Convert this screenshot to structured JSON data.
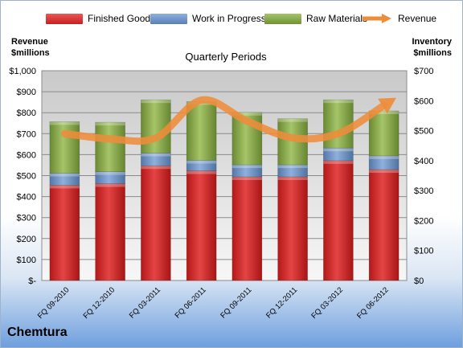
{
  "company": "Chemtura",
  "plot_title": "Quarterly Periods",
  "left_axis_title": [
    "Revenue",
    "$millions"
  ],
  "right_axis_title": [
    "Inventory",
    "$millions"
  ],
  "colors": {
    "finished_goods": "#d62b2b",
    "work_in_progress": "#6f94c9",
    "raw_materials": "#8aad4b",
    "revenue": "#ee8c3a"
  },
  "legend": [
    {
      "label": "Finished Goods",
      "color": "#d62b2b",
      "kind": "box"
    },
    {
      "label": "Work in Progress",
      "color": "#6f94c9",
      "kind": "box"
    },
    {
      "label": "Raw Materials",
      "color": "#8aad4b",
      "kind": "box"
    },
    {
      "label": "Revenue",
      "color": "#ee8c3a",
      "kind": "arrow"
    }
  ],
  "chart_data": {
    "type": "bar",
    "stacked": true,
    "categories": [
      "FQ 09-2010",
      "FQ 12-2010",
      "FQ 03-2011",
      "FQ 06-2011",
      "FQ 09-2011",
      "FQ 12-2011",
      "FQ 03-2012",
      "FQ 06-2012"
    ],
    "series": [
      {
        "name": "Finished Goods",
        "axis": "right",
        "values": [
          318,
          323,
          383,
          366,
          346,
          346,
          400,
          370
        ]
      },
      {
        "name": "Work in Progress",
        "axis": "right",
        "values": [
          40,
          40,
          42,
          35,
          40,
          40,
          42,
          46
        ]
      },
      {
        "name": "Raw Materials",
        "axis": "right",
        "values": [
          172,
          165,
          178,
          196,
          175,
          154,
          161,
          150
        ]
      },
      {
        "name": "Revenue",
        "axis": "left",
        "type": "line",
        "values": [
          700,
          675,
          680,
          860,
          760,
          680,
          700,
          835
        ]
      }
    ],
    "left_axis": {
      "label": "Revenue $millions",
      "ylim": [
        0,
        1000
      ],
      "ticks": [
        "$-",
        "$100",
        "$200",
        "$300",
        "$400",
        "$500",
        "$600",
        "$700",
        "$800",
        "$900",
        "$1,000"
      ]
    },
    "right_axis": {
      "label": "Inventory $millions",
      "ylim": [
        0,
        700
      ],
      "ticks": [
        "$0",
        "$100",
        "$200",
        "$300",
        "$400",
        "$500",
        "$600",
        "$700"
      ]
    },
    "title": "Quarterly Periods",
    "grid": true,
    "legend_position": "top"
  }
}
